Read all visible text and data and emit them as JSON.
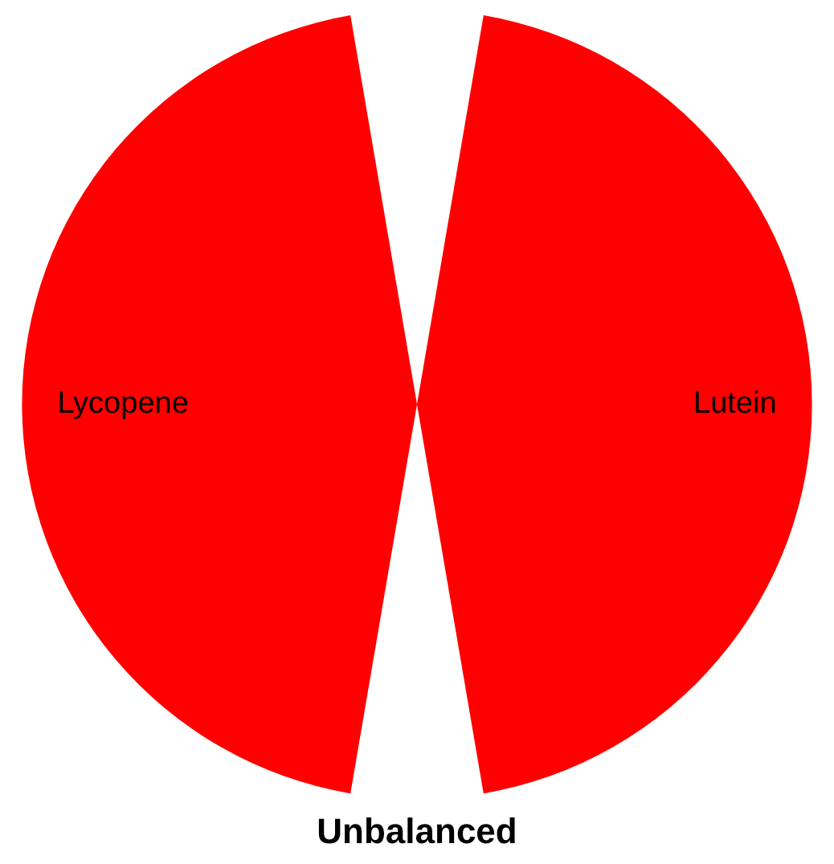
{
  "chart_data": {
    "type": "pie",
    "title": "Unbalanced",
    "categories": [
      "Lycopene",
      "Lutein"
    ],
    "values": [
      50,
      50
    ],
    "colors": [
      "#ff0000",
      "#ff0000"
    ],
    "legend": false
  }
}
